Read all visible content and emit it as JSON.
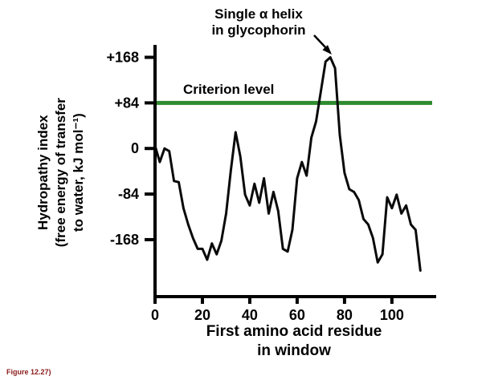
{
  "figure": {
    "caption": "Figure 12.27)"
  },
  "chart_data": {
    "type": "line",
    "title": "",
    "annotation": {
      "line1": "Single α helix",
      "line2": "in glycophorin"
    },
    "criterion": {
      "label": "Criterion level",
      "value": 84,
      "color": "#2e8b2e"
    },
    "xlabel_line1": "First amino acid residue",
    "xlabel_line2": "in window",
    "ylabel_line1": "Hydropathy index",
    "ylabel_line2": "(free energy of transfer",
    "ylabel_line3": "to water, kJ mol⁻¹)",
    "xlim": [
      0,
      117
    ],
    "ylim": [
      -273,
      185
    ],
    "xticks": [
      0,
      20,
      40,
      60,
      80,
      100
    ],
    "yticks": [
      {
        "value": 168,
        "label": "+168"
      },
      {
        "value": 84,
        "label": "+84"
      },
      {
        "value": 0,
        "label": "0"
      },
      {
        "value": -84,
        "label": "-84"
      },
      {
        "value": -168,
        "label": "-168"
      }
    ],
    "line_color": "#0a0a0a",
    "grid": false,
    "legend": "none",
    "series": [
      {
        "name": "hydropathy",
        "x": [
          0,
          2,
          4,
          6,
          8,
          10,
          12,
          14,
          16,
          18,
          20,
          22,
          24,
          26,
          28,
          30,
          32,
          34,
          36,
          38,
          40,
          42,
          44,
          46,
          48,
          50,
          52,
          54,
          56,
          58,
          60,
          62,
          64,
          66,
          68,
          70,
          72,
          74,
          76,
          78,
          80,
          82,
          84,
          86,
          88,
          90,
          92,
          94,
          96,
          98,
          100,
          102,
          104,
          106,
          108,
          110,
          112
        ],
        "y": [
          5,
          -25,
          0,
          -5,
          -60,
          -62,
          -110,
          -140,
          -165,
          -185,
          -185,
          -205,
          -175,
          -195,
          -170,
          -120,
          -40,
          30,
          -15,
          -85,
          -105,
          -65,
          -100,
          -55,
          -120,
          -80,
          -115,
          -185,
          -190,
          -150,
          -55,
          -25,
          -50,
          20,
          50,
          105,
          160,
          168,
          148,
          25,
          -45,
          -75,
          -80,
          -95,
          -130,
          -140,
          -165,
          -210,
          -195,
          -90,
          -110,
          -85,
          -120,
          -105,
          -140,
          -150,
          -225
        ]
      }
    ]
  }
}
